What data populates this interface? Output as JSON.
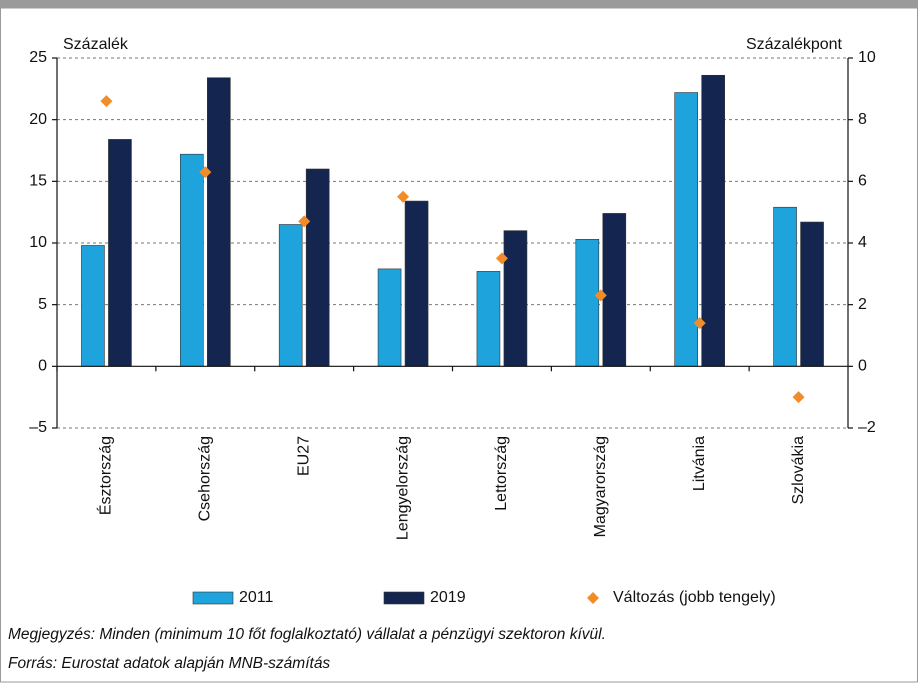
{
  "chart_data": {
    "type": "bar",
    "y_label": "Százalék",
    "y2_label": "Százalékpont",
    "categories": [
      "Észtország",
      "Csehország",
      "EU27",
      "Lengyelország",
      "Lettország",
      "Magyarország",
      "Litvánia",
      "Szlovákia"
    ],
    "series": [
      {
        "name": "2011",
        "color": "#1fa3dc",
        "values": [
          9.8,
          17.2,
          11.5,
          7.9,
          7.7,
          10.3,
          22.2,
          12.9
        ]
      },
      {
        "name": "2019",
        "color": "#14264f",
        "values": [
          18.4,
          23.4,
          16.0,
          13.4,
          11.0,
          12.4,
          23.6,
          11.7
        ]
      },
      {
        "name": "Változás (jobb tengely)",
        "color": "#f28c28",
        "type": "scatter",
        "axis": "y2",
        "values": [
          8.6,
          6.3,
          4.7,
          5.5,
          3.5,
          2.3,
          1.4,
          -1.0
        ]
      }
    ],
    "ylim": [
      -5,
      25
    ],
    "yticks": [
      {
        "value": -5,
        "label": "–5"
      },
      0,
      5,
      10,
      15,
      20,
      25
    ],
    "y2lim": [
      -2,
      10
    ],
    "y2ticks": [
      {
        "value": -2,
        "label": "–2"
      },
      0,
      2,
      4,
      6,
      8,
      10
    ],
    "grid": true,
    "notes": [
      "Megjegyzés: Minden (minimum 10 főt foglalkoztató) vállalat a pénzügyi szektoron kívül.",
      "Forrás: Eurostat adatok alapján MNB-számítás"
    ]
  }
}
